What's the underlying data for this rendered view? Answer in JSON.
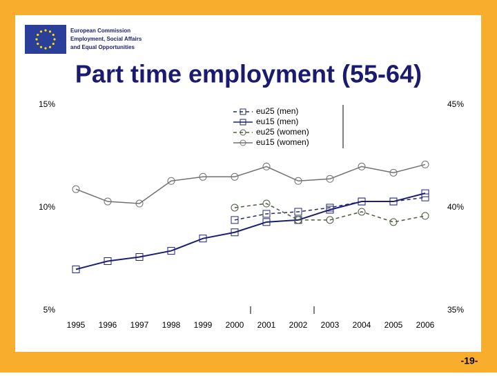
{
  "slide": {
    "logo_lines": [
      "European Commission",
      "Employment, Social Affairs",
      "and Equal Opportunities"
    ],
    "page_number": "-19-"
  },
  "chart_data": {
    "type": "line",
    "title": "Part time employment (55-64)",
    "categories": [
      "1995",
      "1996",
      "1997",
      "1998",
      "1999",
      "2000",
      "2001",
      "2002",
      "2003",
      "2004",
      "2005",
      "2006"
    ],
    "ylim": [
      5,
      15
    ],
    "yticks": [
      {
        "value": 5,
        "label": "5%"
      },
      {
        "value": 10,
        "label": "10%"
      },
      {
        "value": 15,
        "label": "15%"
      }
    ],
    "y2lim": [
      35,
      45
    ],
    "y2ticks": [
      {
        "value": 35,
        "label": "35%"
      },
      {
        "value": 40,
        "label": "40%"
      },
      {
        "value": 45,
        "label": "45%"
      }
    ],
    "series": [
      {
        "name": "eu25 (men)",
        "color": "#1f2a6b",
        "dash": true,
        "marker": "square",
        "values": [
          null,
          null,
          null,
          null,
          null,
          9.4,
          9.7,
          9.8,
          10.0,
          10.3,
          10.3,
          10.5
        ]
      },
      {
        "name": "eu15 (men)",
        "color": "#1a1f70",
        "dash": false,
        "marker": "square",
        "values": [
          7.0,
          7.4,
          7.6,
          7.9,
          8.5,
          8.8,
          9.3,
          9.4,
          9.9,
          10.3,
          10.3,
          10.7
        ]
      },
      {
        "name": "eu25 (women)",
        "color": "#4a5a3a",
        "dash": true,
        "marker": "circle",
        "axis": "y2",
        "values": [
          null,
          null,
          null,
          null,
          null,
          40.0,
          40.2,
          39.4,
          39.4,
          39.8,
          39.3,
          39.6
        ]
      },
      {
        "name": "eu15 (women)",
        "color": "#707070",
        "dash": false,
        "marker": "circle",
        "axis": "y2",
        "values": [
          40.9,
          40.3,
          40.2,
          41.3,
          41.5,
          41.5,
          42.0,
          41.3,
          41.4,
          42.0,
          41.7,
          42.1
        ]
      }
    ]
  }
}
